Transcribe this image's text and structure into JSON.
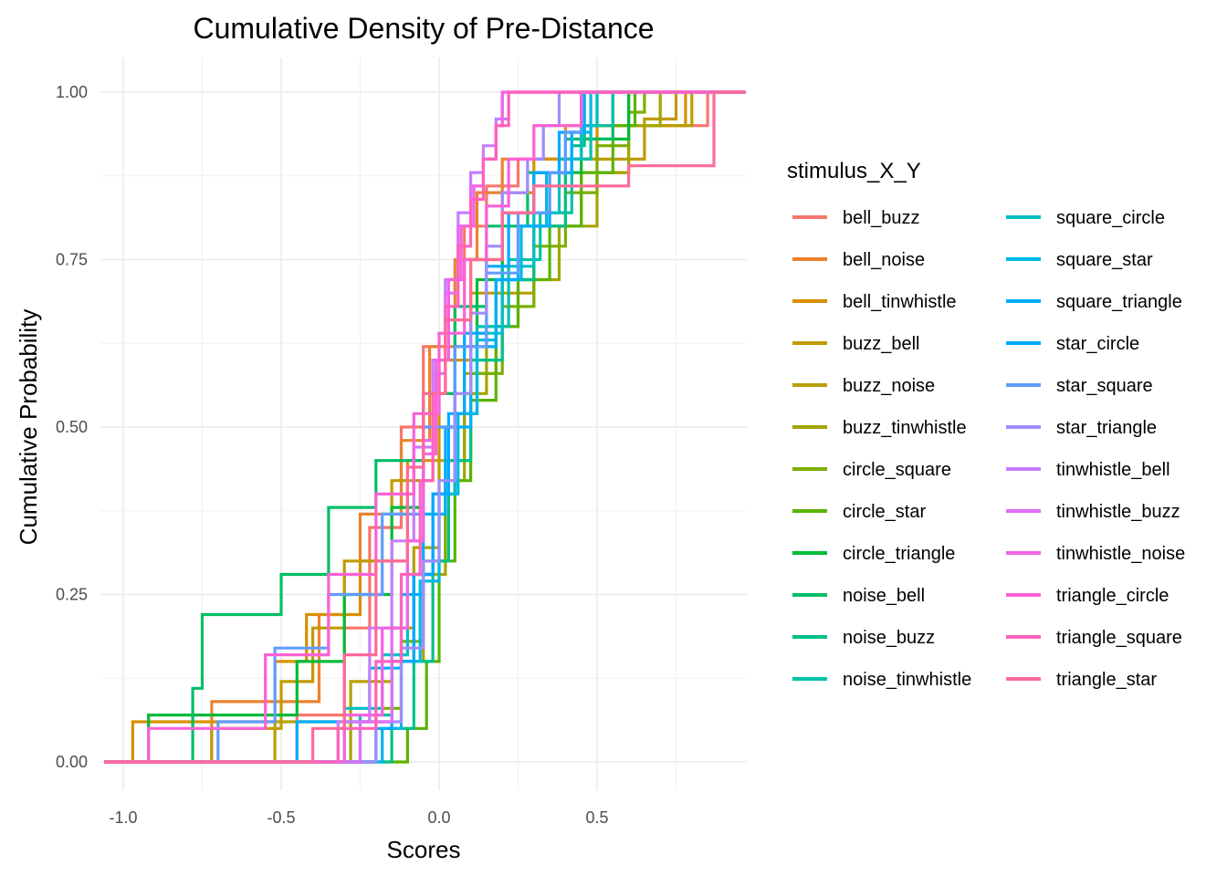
{
  "chart_data": {
    "type": "line",
    "step": true,
    "title": "Cumulative Density of Pre-Distance",
    "xlabel": "Scores",
    "ylabel": "Cumulative Probability",
    "xlim": [
      -1.06,
      0.97
    ],
    "ylim": [
      0,
      1
    ],
    "x_ticks": [
      -1.0,
      -0.5,
      0.0,
      0.5
    ],
    "x_tick_labels": [
      "-1.0",
      "-0.5",
      "0.0",
      "0.5"
    ],
    "y_ticks": [
      0,
      0.25,
      0.5,
      0.75,
      1.0
    ],
    "y_tick_labels": [
      "0.00",
      "0.25",
      "0.50",
      "0.75",
      "1.00"
    ],
    "grid": true,
    "legend_title": "stimulus_X_Y",
    "legend_position": "right",
    "series": [
      {
        "name": "bell_buzz",
        "color": "#F8766D",
        "x": [
          -0.45,
          -0.3,
          -0.22,
          -0.12,
          -0.05,
          0.02,
          0.08,
          0.15,
          0.25,
          0.45,
          0.85
        ],
        "y": [
          0.07,
          0.2,
          0.35,
          0.5,
          0.62,
          0.72,
          0.8,
          0.86,
          0.9,
          0.95,
          1.0
        ]
      },
      {
        "name": "bell_noise",
        "color": "#EA8331",
        "x": [
          -0.72,
          -0.38,
          -0.3,
          -0.25,
          -0.12,
          -0.03,
          0.05,
          0.12,
          0.2,
          0.4,
          0.6
        ],
        "y": [
          0.09,
          0.22,
          0.28,
          0.37,
          0.48,
          0.62,
          0.75,
          0.85,
          0.9,
          0.95,
          1.0
        ]
      },
      {
        "name": "bell_tinwhistle",
        "color": "#D89000",
        "x": [
          -0.97,
          -0.52,
          -0.42,
          -0.25,
          -0.1,
          0.0,
          0.1,
          0.2,
          0.3,
          0.5,
          0.78
        ],
        "y": [
          0.06,
          0.15,
          0.22,
          0.3,
          0.45,
          0.6,
          0.75,
          0.85,
          0.9,
          0.95,
          1.0
        ]
      },
      {
        "name": "buzz_bell",
        "color": "#C09B00",
        "x": [
          -0.72,
          -0.5,
          -0.4,
          -0.3,
          -0.15,
          -0.02,
          0.1,
          0.2,
          0.4,
          0.65,
          0.75
        ],
        "y": [
          0.05,
          0.12,
          0.2,
          0.3,
          0.42,
          0.55,
          0.7,
          0.82,
          0.9,
          0.96,
          1.0
        ]
      },
      {
        "name": "buzz_noise",
        "color": "#B8A000",
        "x": [
          -0.52,
          -0.28,
          -0.15,
          -0.08,
          0.0,
          0.08,
          0.18,
          0.3,
          0.45,
          0.6,
          0.8
        ],
        "y": [
          0.06,
          0.12,
          0.2,
          0.32,
          0.45,
          0.58,
          0.7,
          0.8,
          0.88,
          0.95,
          1.0
        ]
      },
      {
        "name": "buzz_tinwhistle",
        "color": "#A3A500",
        "x": [
          -0.28,
          -0.15,
          -0.05,
          0.02,
          0.08,
          0.15,
          0.25,
          0.38,
          0.5,
          0.6,
          0.7
        ],
        "y": [
          0.06,
          0.15,
          0.28,
          0.42,
          0.55,
          0.65,
          0.72,
          0.8,
          0.88,
          0.95,
          1.0
        ]
      },
      {
        "name": "circle_square",
        "color": "#7CAE00",
        "x": [
          -0.2,
          -0.12,
          -0.05,
          0.02,
          0.1,
          0.2,
          0.3,
          0.4,
          0.5,
          0.6,
          0.65
        ],
        "y": [
          0.08,
          0.18,
          0.3,
          0.45,
          0.58,
          0.68,
          0.77,
          0.85,
          0.92,
          0.97,
          1.0
        ]
      },
      {
        "name": "circle_star",
        "color": "#5BB300",
        "x": [
          -0.1,
          -0.04,
          0.0,
          0.05,
          0.1,
          0.18,
          0.25,
          0.35,
          0.45,
          0.55,
          0.62
        ],
        "y": [
          0.05,
          0.15,
          0.3,
          0.42,
          0.54,
          0.65,
          0.72,
          0.8,
          0.88,
          0.95,
          1.0
        ]
      },
      {
        "name": "circle_triangle",
        "color": "#00BA38",
        "x": [
          -0.92,
          -0.45,
          -0.3,
          -0.15,
          -0.05,
          0.05,
          0.12,
          0.2,
          0.3,
          0.45,
          0.6
        ],
        "y": [
          0.07,
          0.15,
          0.25,
          0.38,
          0.5,
          0.62,
          0.72,
          0.82,
          0.88,
          0.93,
          1.0
        ]
      },
      {
        "name": "noise_bell",
        "color": "#00BE67",
        "x": [
          -0.78,
          -0.75,
          -0.5,
          -0.35,
          -0.2,
          -0.05,
          0.05,
          0.15,
          0.28,
          0.4,
          0.55
        ],
        "y": [
          0.11,
          0.22,
          0.28,
          0.38,
          0.45,
          0.55,
          0.68,
          0.8,
          0.88,
          0.93,
          1.0
        ]
      },
      {
        "name": "noise_buzz",
        "color": "#00C08B",
        "x": [
          -0.15,
          -0.08,
          -0.02,
          0.03,
          0.1,
          0.2,
          0.3,
          0.4,
          0.42,
          0.46,
          0.5
        ],
        "y": [
          0.05,
          0.15,
          0.3,
          0.45,
          0.6,
          0.72,
          0.8,
          0.88,
          0.92,
          0.95,
          1.0
        ]
      },
      {
        "name": "noise_tinwhistle",
        "color": "#00C1A9",
        "x": [
          -0.25,
          -0.15,
          -0.08,
          -0.02,
          0.05,
          0.12,
          0.22,
          0.32,
          0.42,
          0.48,
          0.55
        ],
        "y": [
          0.07,
          0.15,
          0.28,
          0.4,
          0.52,
          0.65,
          0.75,
          0.82,
          0.9,
          0.95,
          1.0
        ]
      },
      {
        "name": "square_circle",
        "color": "#00BFC4",
        "x": [
          -0.3,
          -0.18,
          -0.1,
          -0.02,
          0.05,
          0.12,
          0.2,
          0.3,
          0.38,
          0.45,
          0.5
        ],
        "y": [
          0.08,
          0.16,
          0.28,
          0.4,
          0.52,
          0.64,
          0.74,
          0.82,
          0.9,
          0.95,
          1.0
        ]
      },
      {
        "name": "square_star",
        "color": "#00B9E3",
        "x": [
          -0.18,
          -0.12,
          -0.06,
          0.0,
          0.06,
          0.12,
          0.18,
          0.26,
          0.34,
          0.42,
          0.48
        ],
        "y": [
          0.05,
          0.15,
          0.27,
          0.4,
          0.52,
          0.63,
          0.72,
          0.8,
          0.88,
          0.94,
          1.0
        ]
      },
      {
        "name": "square_triangle",
        "color": "#00ADFA",
        "x": [
          -0.45,
          -0.22,
          -0.12,
          -0.05,
          0.02,
          0.1,
          0.18,
          0.25,
          0.35,
          0.42,
          0.46
        ],
        "y": [
          0.06,
          0.14,
          0.25,
          0.37,
          0.5,
          0.62,
          0.72,
          0.8,
          0.88,
          0.94,
          1.0
        ]
      },
      {
        "name": "star_circle",
        "color": "#00A9FF",
        "x": [
          -0.2,
          -0.15,
          -0.08,
          -0.02,
          0.03,
          0.08,
          0.15,
          0.22,
          0.3,
          0.38,
          0.45
        ],
        "y": [
          0.05,
          0.15,
          0.28,
          0.4,
          0.52,
          0.64,
          0.74,
          0.82,
          0.88,
          0.94,
          1.0
        ]
      },
      {
        "name": "star_square",
        "color": "#619CFF",
        "x": [
          -0.7,
          -0.52,
          -0.35,
          -0.18,
          -0.05,
          0.05,
          0.15,
          0.25,
          0.35,
          0.4,
          0.45
        ],
        "y": [
          0.06,
          0.17,
          0.25,
          0.37,
          0.5,
          0.62,
          0.73,
          0.82,
          0.88,
          0.94,
          1.0
        ]
      },
      {
        "name": "star_triangle",
        "color": "#9F8CFF",
        "x": [
          -0.2,
          -0.12,
          -0.05,
          0.0,
          0.05,
          0.1,
          0.15,
          0.2,
          0.28,
          0.33,
          0.38
        ],
        "y": [
          0.06,
          0.17,
          0.3,
          0.42,
          0.55,
          0.67,
          0.77,
          0.85,
          0.9,
          0.95,
          1.0
        ]
      },
      {
        "name": "tinwhistle_bell",
        "color": "#C77CFF",
        "x": [
          -0.32,
          -0.22,
          -0.15,
          -0.08,
          -0.02,
          0.02,
          0.06,
          0.1,
          0.14,
          0.18,
          0.22
        ],
        "y": [
          0.06,
          0.2,
          0.33,
          0.47,
          0.6,
          0.72,
          0.82,
          0.88,
          0.92,
          0.96,
          1.0
        ]
      },
      {
        "name": "tinwhistle_buzz",
        "color": "#E26EF7",
        "x": [
          -0.25,
          -0.15,
          -0.1,
          -0.05,
          -0.01,
          0.02,
          0.06,
          0.1,
          0.14,
          0.18,
          0.2
        ],
        "y": [
          0.06,
          0.2,
          0.33,
          0.48,
          0.58,
          0.7,
          0.8,
          0.86,
          0.9,
          0.95,
          1.0
        ]
      },
      {
        "name": "tinwhistle_noise",
        "color": "#F365E2",
        "x": [
          -0.3,
          -0.18,
          -0.1,
          -0.05,
          -0.01,
          0.03,
          0.07,
          0.11,
          0.14,
          0.18,
          0.2
        ],
        "y": [
          0.07,
          0.2,
          0.33,
          0.46,
          0.6,
          0.72,
          0.8,
          0.86,
          0.9,
          0.95,
          1.0
        ]
      },
      {
        "name": "triangle_circle",
        "color": "#FB61D7",
        "x": [
          -0.92,
          -0.55,
          -0.35,
          -0.2,
          -0.08,
          0.0,
          0.08,
          0.15,
          0.22,
          0.3,
          0.45
        ],
        "y": [
          0.05,
          0.16,
          0.28,
          0.4,
          0.52,
          0.64,
          0.75,
          0.83,
          0.9,
          0.95,
          1.0
        ]
      },
      {
        "name": "triangle_square",
        "color": "#FF62BC",
        "x": [
          -0.32,
          -0.2,
          -0.12,
          -0.06,
          -0.02,
          0.02,
          0.06,
          0.1,
          0.14,
          0.18,
          0.22
        ],
        "y": [
          0.05,
          0.15,
          0.28,
          0.42,
          0.55,
          0.68,
          0.77,
          0.84,
          0.9,
          0.95,
          1.0
        ]
      },
      {
        "name": "triangle_star",
        "color": "#FF6A98",
        "x": [
          -0.4,
          -0.3,
          -0.2,
          -0.1,
          -0.05,
          0.02,
          0.1,
          0.2,
          0.3,
          0.6,
          0.87
        ],
        "y": [
          0.05,
          0.16,
          0.3,
          0.44,
          0.55,
          0.66,
          0.75,
          0.82,
          0.86,
          0.89,
          1.0
        ]
      }
    ]
  }
}
